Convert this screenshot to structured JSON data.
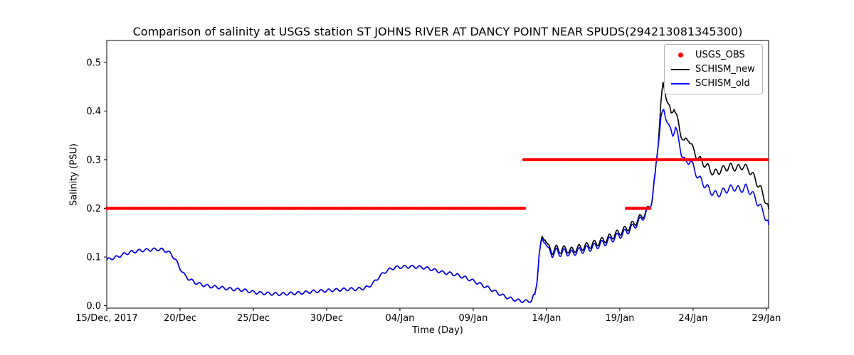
{
  "figure": {
    "background": "#ffffff",
    "axes_color": "#000000"
  },
  "chart_data": {
    "type": "line",
    "title": "Comparison of salinity at USGS station ST JOHNS RIVER AT DANCY POINT NEAR SPUDS(294213081345300)",
    "xlabel": "Time (Day)",
    "ylabel": "Salinity (PSU)",
    "grid": false,
    "x_axis": {
      "start_date_label": "15/Dec, 2017",
      "xlim_days": [
        0,
        45.15
      ],
      "tick_days": [
        0,
        5,
        10,
        15,
        20,
        25,
        30,
        35,
        40,
        45
      ],
      "tick_labels": [
        "15/Dec, 2017",
        "20/Dec",
        "25/Dec",
        "30/Dec",
        "04/Jan",
        "09/Jan",
        "14/Jan",
        "19/Jan",
        "24/Jan",
        "29/Jan"
      ]
    },
    "y_axis": {
      "ylim": [
        -0.005,
        0.545
      ],
      "ticks": [
        0.0,
        0.1,
        0.2,
        0.3,
        0.4,
        0.5
      ],
      "tick_labels": [
        "0.0",
        "0.1",
        "0.2",
        "0.3",
        "0.4",
        "0.5"
      ]
    },
    "legend": {
      "position": "upper right",
      "entries": [
        {
          "label": "USGS_OBS",
          "marker": "dot",
          "color": "#ff0000"
        },
        {
          "label": "SCHISM_new",
          "marker": "line",
          "color": "#000000"
        },
        {
          "label": "SCHISM_old",
          "marker": "line",
          "color": "#0000ff"
        }
      ]
    },
    "tidal_wiggle": {
      "period_days": 0.5175,
      "amplitude_before_day29": 0.003,
      "amplitude_after_day29": 0.007
    },
    "series": [
      {
        "name": "USGS_OBS",
        "type": "scatter",
        "color": "#ff0000",
        "marker_radius_px": 2.2,
        "dot_spacing_days": 0.1,
        "segments": [
          {
            "value_psu": 0.2,
            "start_day": 0,
            "end_day": 28.55
          },
          {
            "value_psu": 0.3,
            "start_day": 28.45,
            "end_day": 45.1
          },
          {
            "value_psu": 0.2,
            "start_day": 35.45,
            "end_day": 37.05
          }
        ]
      },
      {
        "name": "SCHISM_new",
        "type": "line",
        "color": "#000000",
        "points_day_psu": [
          [
            0,
            0.094
          ],
          [
            0.3,
            0.097
          ],
          [
            0.7,
            0.1
          ],
          [
            1,
            0.104
          ],
          [
            1.5,
            0.109
          ],
          [
            2,
            0.112
          ],
          [
            2.5,
            0.114
          ],
          [
            3,
            0.115
          ],
          [
            3.5,
            0.116
          ],
          [
            3.8,
            0.115
          ],
          [
            4.1,
            0.112
          ],
          [
            4.4,
            0.106
          ],
          [
            4.7,
            0.094
          ],
          [
            5,
            0.077
          ],
          [
            5.3,
            0.063
          ],
          [
            5.6,
            0.055
          ],
          [
            6,
            0.048
          ],
          [
            6.4,
            0.044
          ],
          [
            6.8,
            0.041
          ],
          [
            7.2,
            0.039
          ],
          [
            7.6,
            0.038
          ],
          [
            8,
            0.036
          ],
          [
            8.5,
            0.034
          ],
          [
            9,
            0.033
          ],
          [
            9.5,
            0.031
          ],
          [
            10,
            0.028
          ],
          [
            10.5,
            0.026
          ],
          [
            11,
            0.025
          ],
          [
            11.5,
            0.024
          ],
          [
            12,
            0.024
          ],
          [
            12.5,
            0.025
          ],
          [
            13,
            0.026
          ],
          [
            13.5,
            0.027
          ],
          [
            14,
            0.029
          ],
          [
            14.5,
            0.03
          ],
          [
            15,
            0.031
          ],
          [
            15.5,
            0.032
          ],
          [
            16,
            0.033
          ],
          [
            16.5,
            0.034
          ],
          [
            17,
            0.034
          ],
          [
            17.4,
            0.035
          ],
          [
            17.8,
            0.038
          ],
          [
            18.2,
            0.047
          ],
          [
            18.6,
            0.06
          ],
          [
            19,
            0.07
          ],
          [
            19.4,
            0.076
          ],
          [
            19.8,
            0.079
          ],
          [
            20.5,
            0.08
          ],
          [
            21,
            0.08
          ],
          [
            21.5,
            0.079
          ],
          [
            22,
            0.076
          ],
          [
            22.5,
            0.072
          ],
          [
            23,
            0.068
          ],
          [
            23.5,
            0.066
          ],
          [
            24,
            0.062
          ],
          [
            24.5,
            0.057
          ],
          [
            25,
            0.051
          ],
          [
            25.5,
            0.044
          ],
          [
            26,
            0.037
          ],
          [
            26.5,
            0.029
          ],
          [
            27,
            0.021
          ],
          [
            27.5,
            0.015
          ],
          [
            28,
            0.011
          ],
          [
            28.5,
            0.009
          ],
          [
            29,
            0.01
          ],
          [
            29.2,
            0.02
          ],
          [
            29.35,
            0.055
          ],
          [
            29.5,
            0.105
          ],
          [
            29.7,
            0.138
          ],
          [
            29.9,
            0.142
          ],
          [
            30.1,
            0.12
          ],
          [
            30.4,
            0.112
          ],
          [
            30.7,
            0.118
          ],
          [
            31,
            0.113
          ],
          [
            31.3,
            0.118
          ],
          [
            31.6,
            0.112
          ],
          [
            32,
            0.117
          ],
          [
            32.4,
            0.12
          ],
          [
            32.8,
            0.123
          ],
          [
            33.2,
            0.127
          ],
          [
            33.6,
            0.131
          ],
          [
            34,
            0.136
          ],
          [
            34.4,
            0.142
          ],
          [
            34.8,
            0.148
          ],
          [
            35.2,
            0.154
          ],
          [
            35.6,
            0.161
          ],
          [
            36,
            0.17
          ],
          [
            36.4,
            0.181
          ],
          [
            36.8,
            0.193
          ],
          [
            37,
            0.202
          ],
          [
            37.2,
            0.218
          ],
          [
            37.4,
            0.262
          ],
          [
            37.6,
            0.33
          ],
          [
            37.8,
            0.415
          ],
          [
            37.95,
            0.453
          ],
          [
            38.1,
            0.44
          ],
          [
            38.3,
            0.415
          ],
          [
            38.5,
            0.392
          ],
          [
            38.7,
            0.41
          ],
          [
            38.9,
            0.385
          ],
          [
            39.1,
            0.36
          ],
          [
            39.4,
            0.335
          ],
          [
            39.7,
            0.345
          ],
          [
            40,
            0.32
          ],
          [
            40.3,
            0.305
          ],
          [
            40.6,
            0.296
          ],
          [
            41,
            0.285
          ],
          [
            41.4,
            0.272
          ],
          [
            41.8,
            0.277
          ],
          [
            42.2,
            0.283
          ],
          [
            42.6,
            0.286
          ],
          [
            43,
            0.282
          ],
          [
            43.4,
            0.287
          ],
          [
            43.8,
            0.28
          ],
          [
            44.2,
            0.262
          ],
          [
            44.6,
            0.24
          ],
          [
            45,
            0.212
          ],
          [
            45.15,
            0.198
          ]
        ]
      },
      {
        "name": "SCHISM_old",
        "type": "line",
        "color": "#0000ff",
        "points_day_psu": [
          [
            0,
            0.094
          ],
          [
            0.3,
            0.097
          ],
          [
            0.7,
            0.1
          ],
          [
            1,
            0.104
          ],
          [
            1.5,
            0.109
          ],
          [
            2,
            0.112
          ],
          [
            2.5,
            0.114
          ],
          [
            3,
            0.115
          ],
          [
            3.5,
            0.116
          ],
          [
            3.8,
            0.115
          ],
          [
            4.1,
            0.112
          ],
          [
            4.4,
            0.106
          ],
          [
            4.7,
            0.094
          ],
          [
            5,
            0.077
          ],
          [
            5.3,
            0.063
          ],
          [
            5.6,
            0.055
          ],
          [
            6,
            0.048
          ],
          [
            6.4,
            0.044
          ],
          [
            6.8,
            0.041
          ],
          [
            7.2,
            0.039
          ],
          [
            7.6,
            0.038
          ],
          [
            8,
            0.036
          ],
          [
            8.5,
            0.034
          ],
          [
            9,
            0.033
          ],
          [
            9.5,
            0.031
          ],
          [
            10,
            0.028
          ],
          [
            10.5,
            0.026
          ],
          [
            11,
            0.025
          ],
          [
            11.5,
            0.024
          ],
          [
            12,
            0.024
          ],
          [
            12.5,
            0.025
          ],
          [
            13,
            0.026
          ],
          [
            13.5,
            0.027
          ],
          [
            14,
            0.029
          ],
          [
            14.5,
            0.03
          ],
          [
            15,
            0.031
          ],
          [
            15.5,
            0.032
          ],
          [
            16,
            0.033
          ],
          [
            16.5,
            0.034
          ],
          [
            17,
            0.034
          ],
          [
            17.4,
            0.035
          ],
          [
            17.8,
            0.038
          ],
          [
            18.2,
            0.047
          ],
          [
            18.6,
            0.06
          ],
          [
            19,
            0.07
          ],
          [
            19.4,
            0.076
          ],
          [
            19.8,
            0.079
          ],
          [
            20.5,
            0.08
          ],
          [
            21,
            0.08
          ],
          [
            21.5,
            0.079
          ],
          [
            22,
            0.076
          ],
          [
            22.5,
            0.072
          ],
          [
            23,
            0.068
          ],
          [
            23.5,
            0.066
          ],
          [
            24,
            0.062
          ],
          [
            24.5,
            0.057
          ],
          [
            25,
            0.051
          ],
          [
            25.5,
            0.044
          ],
          [
            26,
            0.037
          ],
          [
            26.5,
            0.029
          ],
          [
            27,
            0.021
          ],
          [
            27.5,
            0.015
          ],
          [
            28,
            0.011
          ],
          [
            28.5,
            0.009
          ],
          [
            29,
            0.01
          ],
          [
            29.2,
            0.02
          ],
          [
            29.35,
            0.055
          ],
          [
            29.5,
            0.105
          ],
          [
            29.7,
            0.133
          ],
          [
            29.9,
            0.136
          ],
          [
            30.1,
            0.114
          ],
          [
            30.4,
            0.106
          ],
          [
            30.7,
            0.112
          ],
          [
            31,
            0.107
          ],
          [
            31.3,
            0.112
          ],
          [
            31.6,
            0.106
          ],
          [
            32,
            0.111
          ],
          [
            32.4,
            0.114
          ],
          [
            32.8,
            0.117
          ],
          [
            33.2,
            0.121
          ],
          [
            33.6,
            0.125
          ],
          [
            34,
            0.13
          ],
          [
            34.4,
            0.136
          ],
          [
            34.8,
            0.142
          ],
          [
            35.2,
            0.148
          ],
          [
            35.6,
            0.155
          ],
          [
            36,
            0.164
          ],
          [
            36.4,
            0.176
          ],
          [
            36.8,
            0.19
          ],
          [
            37,
            0.2
          ],
          [
            37.2,
            0.22
          ],
          [
            37.4,
            0.265
          ],
          [
            37.6,
            0.33
          ],
          [
            37.8,
            0.385
          ],
          [
            38,
            0.4
          ],
          [
            38.2,
            0.385
          ],
          [
            38.4,
            0.362
          ],
          [
            38.6,
            0.352
          ],
          [
            38.8,
            0.368
          ],
          [
            39,
            0.34
          ],
          [
            39.2,
            0.315
          ],
          [
            39.5,
            0.292
          ],
          [
            39.8,
            0.3
          ],
          [
            40.1,
            0.278
          ],
          [
            40.4,
            0.262
          ],
          [
            40.8,
            0.248
          ],
          [
            41.2,
            0.235
          ],
          [
            41.6,
            0.228
          ],
          [
            42,
            0.234
          ],
          [
            42.4,
            0.24
          ],
          [
            42.8,
            0.243
          ],
          [
            43.2,
            0.238
          ],
          [
            43.6,
            0.243
          ],
          [
            44,
            0.232
          ],
          [
            44.4,
            0.212
          ],
          [
            44.8,
            0.192
          ],
          [
            45.15,
            0.166
          ]
        ]
      }
    ]
  }
}
